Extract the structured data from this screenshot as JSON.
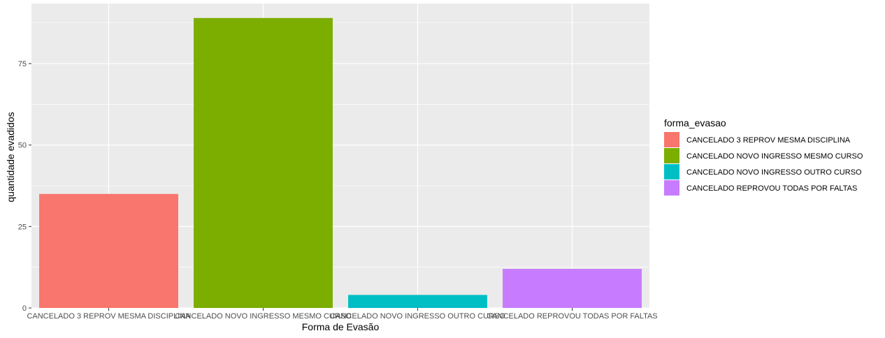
{
  "chart_data": {
    "type": "bar",
    "categories": [
      "CANCELADO 3 REPROV MESMA DISCIPLINA",
      "CANCELADO NOVO INGRESSO MESMO CURSO",
      "CANCELADO NOVO INGRESSO OUTRO CURSO",
      "CANCELADO REPROVOU TODAS POR FALTAS"
    ],
    "values": [
      35,
      89,
      4,
      12
    ],
    "colors": [
      "#F8766D",
      "#7CAE00",
      "#00BFC4",
      "#C77CFF"
    ],
    "xlabel": "Forma de Evasão",
    "ylabel": "quantidade evadidos",
    "ylim": [
      0,
      93.45
    ],
    "yticks": [
      0,
      25,
      50,
      75
    ],
    "ytick_labels": [
      "0",
      "25",
      "50",
      "75"
    ],
    "grid": true,
    "background": "#EBEBEB",
    "gridline_color": "#FFFFFF",
    "legend": {
      "title": "forma_evasao",
      "placement": "right",
      "entries": [
        "CANCELADO 3 REPROV MESMA DISCIPLINA",
        "CANCELADO NOVO INGRESSO MESMO CURSO",
        "CANCELADO NOVO INGRESSO OUTRO CURSO",
        "CANCELADO REPROVOU TODAS POR FALTAS"
      ]
    }
  }
}
